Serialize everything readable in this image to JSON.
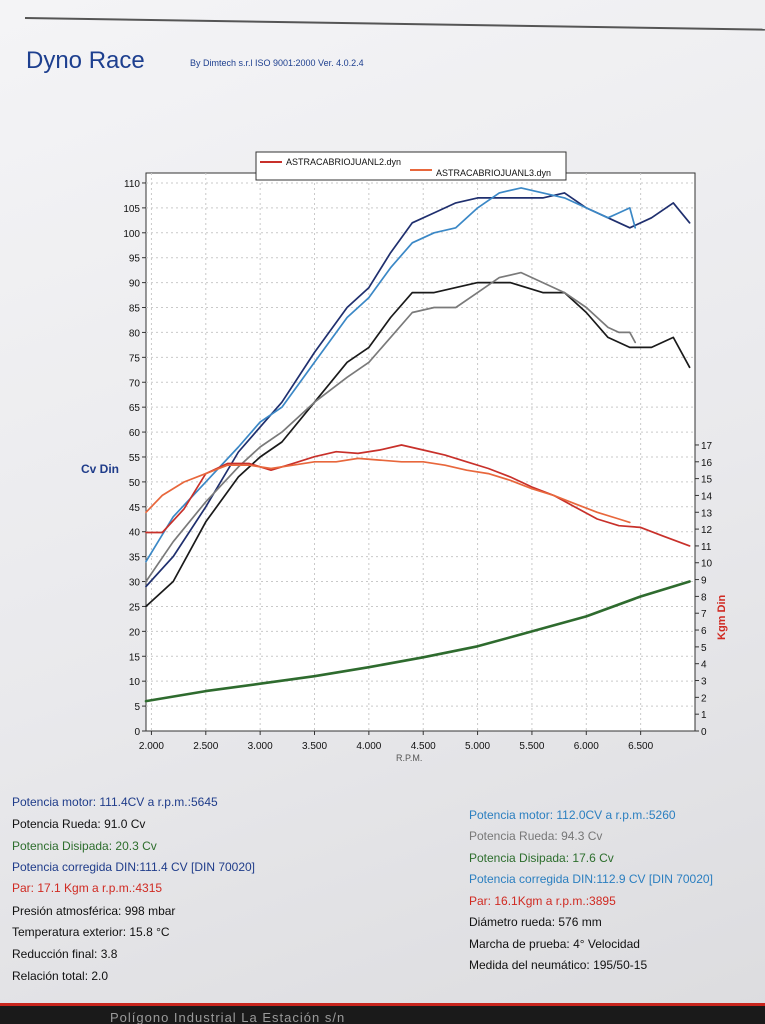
{
  "header": {
    "brand": "Dyno Race",
    "byline": "By Dimtech s.r.l  ISO 9001:2000  Ver. 4.0.2.4"
  },
  "chart_data": {
    "type": "line",
    "legend": [
      {
        "name": "ASTRACABRIOJUANL2.dyn",
        "color": "#c8302a"
      },
      {
        "name": "ASTRACABRIOJUANL3.dyn",
        "color": "#e8673c"
      }
    ],
    "xlabel": "R.P.M.",
    "ylabel_left": "Cv Din",
    "ylabel_right": "Kgm Din",
    "xlim": [
      1950,
      7000
    ],
    "ylim_left": [
      0,
      112
    ],
    "ylim_right": [
      0,
      17
    ],
    "x_ticks": [
      2000,
      2500,
      3000,
      3500,
      4000,
      4500,
      5000,
      5500,
      6000,
      6500
    ],
    "x_tick_labels": [
      "2.000",
      "2.500",
      "3.000",
      "3.500",
      "4.000",
      "4.500",
      "5.000",
      "5.500",
      "6.000",
      "6.500"
    ],
    "y_left_ticks": [
      0,
      5,
      10,
      15,
      20,
      25,
      30,
      35,
      40,
      45,
      50,
      55,
      60,
      65,
      70,
      75,
      80,
      85,
      90,
      95,
      100,
      105,
      110
    ],
    "y_right_ticks": [
      0,
      1,
      2,
      3,
      4,
      5,
      6,
      7,
      8,
      9,
      10,
      11,
      12,
      13,
      14,
      15,
      16,
      17
    ],
    "grid": true,
    "series": [
      {
        "color": "#1f2f6e",
        "axis": "left",
        "x": [
          1950,
          2200,
          2500,
          2800,
          3000,
          3200,
          3500,
          3800,
          4000,
          4200,
          4400,
          4600,
          4800,
          5000,
          5300,
          5600,
          5800,
          6000,
          6200,
          6400,
          6600,
          6800,
          6950
        ],
        "y": [
          29,
          35,
          45,
          56,
          61,
          66,
          76,
          85,
          89,
          96,
          102,
          104,
          106,
          107,
          107,
          107,
          108,
          105,
          103,
          101,
          103,
          106,
          102
        ]
      },
      {
        "color": "#3b88c6",
        "axis": "left",
        "x": [
          1950,
          2200,
          2500,
          2800,
          3000,
          3200,
          3500,
          3800,
          4000,
          4200,
          4400,
          4600,
          4800,
          5000,
          5200,
          5400,
          5600,
          5800,
          6000,
          6200,
          6300,
          6400,
          6450
        ],
        "y": [
          34,
          43,
          50,
          57,
          62,
          65,
          74,
          83,
          87,
          93,
          98,
          100,
          101,
          105,
          108,
          109,
          108,
          107,
          105,
          103,
          104,
          105,
          101
        ]
      },
      {
        "color": "#1a1a1a",
        "axis": "left",
        "x": [
          1950,
          2200,
          2500,
          2800,
          3000,
          3200,
          3500,
          3800,
          4000,
          4200,
          4400,
          4600,
          4800,
          5000,
          5300,
          5600,
          5800,
          6000,
          6200,
          6400,
          6600,
          6800,
          6950
        ],
        "y": [
          25,
          30,
          42,
          51,
          55,
          58,
          66,
          74,
          77,
          83,
          88,
          88,
          89,
          90,
          90,
          88,
          88,
          84,
          79,
          77,
          77,
          79,
          73
        ]
      },
      {
        "color": "#7a7a7a",
        "axis": "left",
        "x": [
          1950,
          2200,
          2500,
          2800,
          3000,
          3200,
          3500,
          3800,
          4000,
          4200,
          4400,
          4600,
          4800,
          5000,
          5200,
          5400,
          5600,
          5800,
          6000,
          6200,
          6300,
          6400,
          6450
        ],
        "y": [
          30,
          38,
          46,
          53,
          57,
          60,
          66,
          71,
          74,
          79,
          84,
          85,
          85,
          88,
          91,
          92,
          90,
          88,
          85,
          81,
          80,
          80,
          78
        ]
      },
      {
        "color": "#c8302a",
        "axis": "right",
        "x": [
          1950,
          2100,
          2300,
          2500,
          2700,
          2900,
          3100,
          3300,
          3500,
          3700,
          3900,
          4100,
          4300,
          4500,
          4700,
          4900,
          5100,
          5300,
          5500,
          5700,
          5900,
          6100,
          6300,
          6500,
          6700,
          6950
        ],
        "y": [
          11.8,
          11.8,
          13.2,
          15.3,
          15.9,
          15.9,
          15.5,
          15.9,
          16.3,
          16.6,
          16.5,
          16.7,
          17.0,
          16.7,
          16.4,
          16.0,
          15.6,
          15.1,
          14.5,
          14.0,
          13.3,
          12.6,
          12.2,
          12.1,
          11.6,
          11.0
        ]
      },
      {
        "color": "#e8673c",
        "axis": "right",
        "x": [
          1950,
          2100,
          2300,
          2500,
          2700,
          2900,
          3100,
          3300,
          3500,
          3700,
          3900,
          4100,
          4300,
          4500,
          4700,
          4900,
          5100,
          5300,
          5500,
          5700,
          5900,
          6100,
          6300,
          6400
        ],
        "y": [
          13.0,
          14.0,
          14.8,
          15.3,
          15.8,
          15.8,
          15.6,
          15.8,
          16.0,
          16.0,
          16.2,
          16.1,
          16.0,
          16.0,
          15.8,
          15.5,
          15.3,
          14.9,
          14.4,
          14.0,
          13.5,
          13.0,
          12.6,
          12.4
        ]
      },
      {
        "color": "#2e6b2e",
        "axis": "left",
        "x": [
          1950,
          2500,
          3000,
          3500,
          4000,
          4500,
          5000,
          5500,
          6000,
          6500,
          6950
        ],
        "y": [
          6,
          8,
          9.5,
          11,
          12.8,
          14.8,
          17,
          20,
          23,
          27,
          30
        ]
      }
    ]
  },
  "stats_left": [
    {
      "text": "Potencia motor: 111.4CV a r.p.m.:5645",
      "color": "blue"
    },
    {
      "text": "Potencia Rueda: 91.0 Cv",
      "color": "black"
    },
    {
      "text": "Potencia Disipada: 20.3 Cv",
      "color": "green"
    },
    {
      "text": "Potencia corregida DIN:111.4 CV  [DIN 70020]",
      "color": "blue"
    },
    {
      "text": "Par: 17.1 Kgm a r.p.m.:4315",
      "color": "red"
    },
    {
      "text": "Presión atmosférica: 998 mbar",
      "color": "black"
    },
    {
      "text": "Temperatura exterior: 15.8 °C",
      "color": "black"
    },
    {
      "text": "Reducción final: 3.8",
      "color": "black"
    },
    {
      "text": "Relación total: 2.0",
      "color": "black"
    }
  ],
  "stats_right": [
    {
      "text": "Potencia motor: 112.0CV a r.p.m.:5260",
      "color": "teal"
    },
    {
      "text": "Potencia Rueda: 94.3 Cv",
      "color": "grey"
    },
    {
      "text": "Potencia Disipada: 17.6 Cv",
      "color": "green"
    },
    {
      "text": "Potencia corregida DIN:112.9 CV  [DIN 70020]",
      "color": "teal"
    },
    {
      "text": "Par: 16.1Kgm a r.p.m.:3895",
      "color": "red"
    },
    {
      "text": "Diámetro rueda: 576 mm",
      "color": "black"
    },
    {
      "text": "Marcha de prueba: 4° Velocidad",
      "color": "black"
    },
    {
      "text": "Medida del neumático: 195/50-15",
      "color": "black"
    }
  ],
  "footer": {
    "text": "Polígono Industrial La Estación s/n"
  }
}
